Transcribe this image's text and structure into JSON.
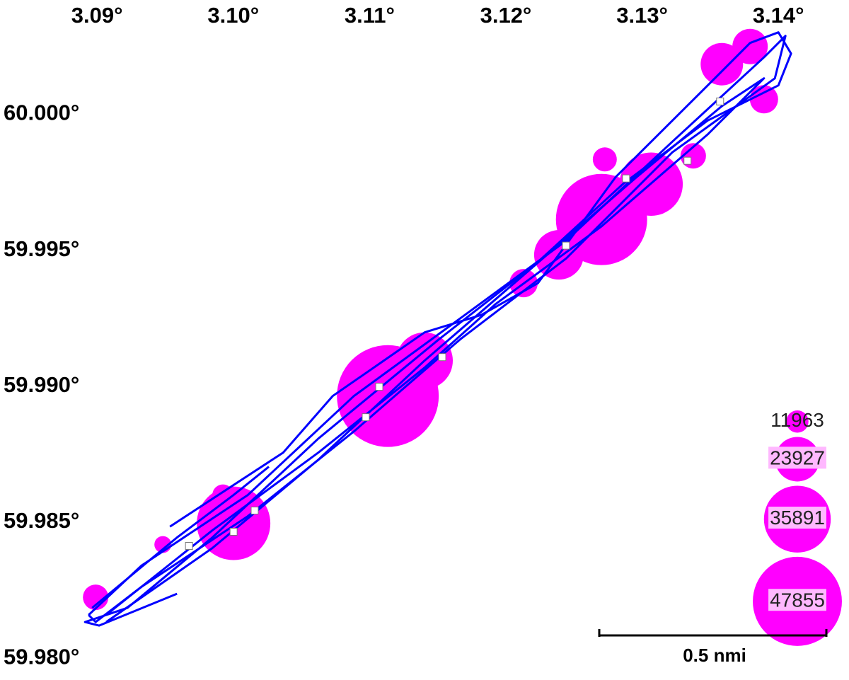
{
  "chart_data": {
    "type": "bubble-map",
    "xlim": [
      3.0834,
      3.1457
    ],
    "ylim": [
      59.9792,
      60.0042
    ],
    "xticks": [
      {
        "value": 3.09,
        "label": "3.09°"
      },
      {
        "value": 3.1,
        "label": "3.10°"
      },
      {
        "value": 3.11,
        "label": "3.11°"
      },
      {
        "value": 3.12,
        "label": "3.12°"
      },
      {
        "value": 3.13,
        "label": "3.13°"
      },
      {
        "value": 3.14,
        "label": "3.14°"
      }
    ],
    "yticks": [
      {
        "value": 60.0,
        "label": "60.000°"
      },
      {
        "value": 59.995,
        "label": "59.995°"
      },
      {
        "value": 59.99,
        "label": "59.990°"
      },
      {
        "value": 59.985,
        "label": "59.985°"
      },
      {
        "value": 59.98,
        "label": "59.980°"
      }
    ],
    "grid": true,
    "bubble_color": "#ff00ff",
    "track_color": "#0000ff",
    "marker_color": "#ffffff",
    "bubbles": {
      "x": [
        3.11186,
        3.10054,
        3.12754,
        3.13118,
        3.13637,
        3.13844,
        3.12441,
        3.11455,
        3.12778,
        3.09042,
        3.13427,
        3.13946,
        3.09976,
        3.12182,
        3.09535
      ],
      "y": [
        59.98964,
        59.98496,
        59.99613,
        59.99743,
        60.00184,
        60.00249,
        59.99483,
        59.99094,
        59.99834,
        59.98224,
        59.99847,
        60.00055,
        59.986,
        59.99379,
        59.98418
      ],
      "sizes": [
        54700,
        39500,
        49000,
        34000,
        22800,
        19000,
        26600,
        30400,
        12900,
        13700,
        13700,
        15200,
        11400,
        15200,
        9100
      ]
    },
    "tracks": [
      {
        "x": [
          3.0899,
          3.09379,
          3.10158,
          3.10937,
          3.11716,
          3.12495,
          3.13273,
          3.13948,
          3.14104,
          3.14026,
          3.13273,
          3.12495,
          3.11716,
          3.10937,
          3.10158,
          3.09379,
          3.09042,
          3.0899
        ],
        "y": [
          59.98159,
          59.98341,
          59.986,
          59.98964,
          59.99249,
          59.99535,
          59.99899,
          60.0021,
          60.00288,
          60.00132,
          59.9986,
          59.9947,
          59.99172,
          59.98834,
          59.98522,
          59.98263,
          59.98133,
          59.98159
        ]
      },
      {
        "x": [
          3.09016,
          3.09639,
          3.10054,
          3.10313
        ],
        "y": [
          59.98185,
          59.98444,
          59.986,
          59.98704
        ]
      },
      {
        "x": [
          3.09587,
          3.10418,
          3.10781,
          3.11456,
          3.11872,
          3.12287,
          3.12858,
          3.13533,
          3.13844,
          3.14052,
          3.14145,
          3.14052,
          3.13533,
          3.1291,
          3.12287,
          3.1156,
          3.10677,
          3.09898,
          3.09275,
          3.08964,
          3.09067,
          3.09639
        ],
        "y": [
          59.98484,
          59.98756,
          59.98964,
          59.99198,
          59.99262,
          59.99379,
          59.99769,
          60.00106,
          60.00262,
          60.00301,
          60.00223,
          60.00106,
          59.99977,
          59.99743,
          59.99457,
          59.99172,
          59.98808,
          59.98444,
          59.98185,
          59.98133,
          59.9812,
          59.98237
        ]
      },
      {
        "x": [
          3.09119,
          3.09898,
          3.10676,
          3.11455,
          3.11974,
          3.12752,
          3.13531,
          3.13946,
          3.13635,
          3.13012,
          3.12233,
          3.11455,
          3.10676,
          3.09898,
          3.09119
        ],
        "y": [
          59.98159,
          59.9847,
          59.98756,
          59.99068,
          59.99301,
          59.99587,
          59.99925,
          60.00132,
          60.00029,
          59.99769,
          59.99431,
          59.99094,
          59.9873,
          59.98405,
          59.98133
        ]
      }
    ],
    "markers": {
      "x": [
        3.12493,
        3.12934,
        3.13385,
        3.13624,
        3.11585,
        3.11123,
        3.11024,
        3.10209,
        3.10054,
        3.09727
      ],
      "y": [
        59.99517,
        59.99764,
        59.99829,
        60.00047,
        59.99107,
        59.98998,
        59.98886,
        59.98543,
        59.98465,
        59.98413
      ]
    },
    "legend_sizes": [
      11963,
      23927,
      35891,
      47855
    ],
    "scale_label": "0.5 nmi"
  }
}
